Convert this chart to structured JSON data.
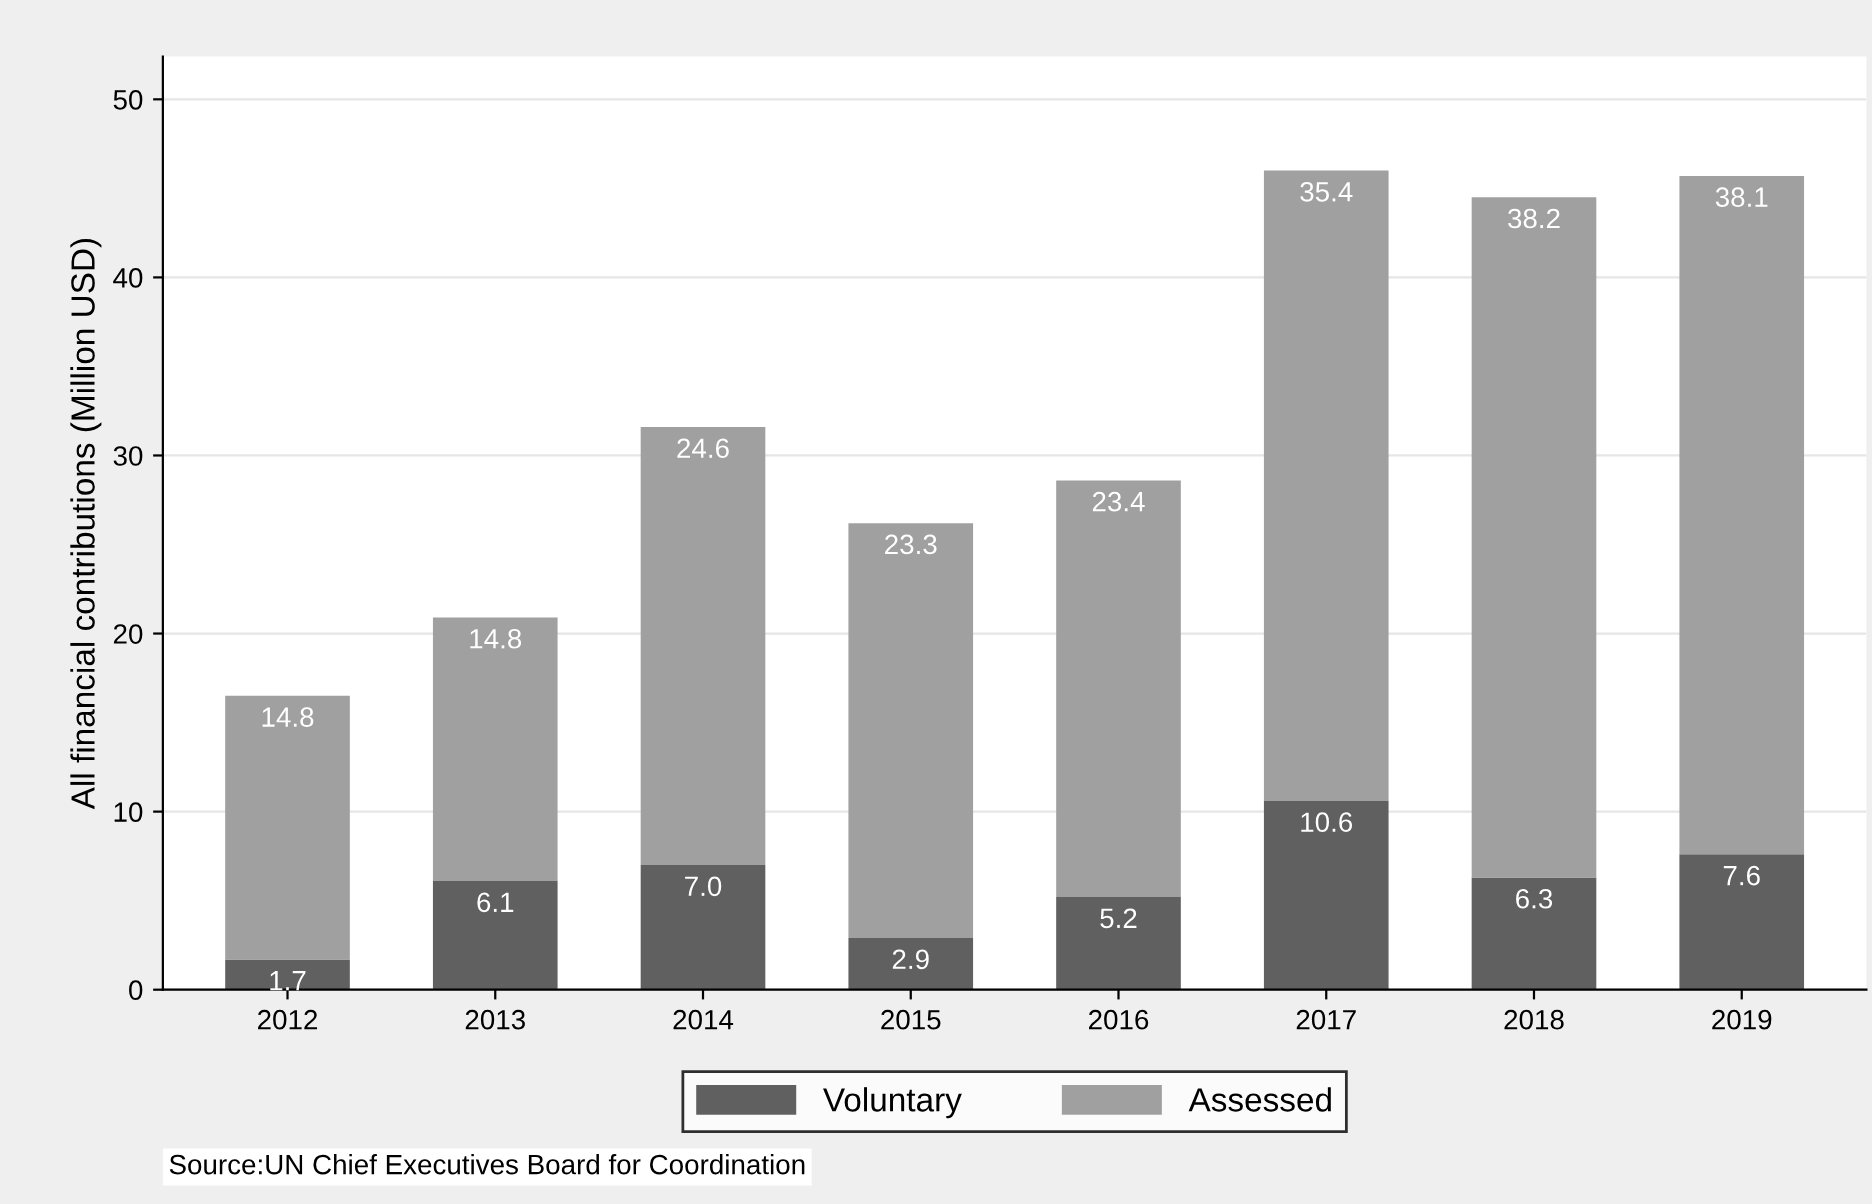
{
  "chart_data": {
    "type": "bar",
    "stacked": true,
    "ylabel": "All financial contributions (Million USD)",
    "categories": [
      "2012",
      "2013",
      "2014",
      "2015",
      "2016",
      "2017",
      "2018",
      "2019"
    ],
    "series": [
      {
        "name": "Voluntary",
        "color": "#606060",
        "values": [
          1.7,
          6.1,
          7.0,
          2.9,
          5.2,
          10.6,
          6.3,
          7.6
        ],
        "value_labels": [
          "1.7",
          "6.1",
          "7.0",
          "2.9",
          "5.2",
          "10.6",
          "6.3",
          "7.6"
        ]
      },
      {
        "name": "Assessed",
        "color": "#a0a0a0",
        "values": [
          14.8,
          14.8,
          24.6,
          23.3,
          23.4,
          35.4,
          38.2,
          38.1
        ],
        "value_labels": [
          "14.8",
          "14.8",
          "24.6",
          "23.3",
          "23.4",
          "35.4",
          "38.2",
          "38.1"
        ]
      }
    ],
    "ylim": [
      0,
      52.4
    ],
    "yticks": [
      0,
      10,
      20,
      30,
      40,
      50
    ],
    "grid": "y",
    "legend": "bottom",
    "annotations": [
      "Source:UN Chief Executives Board for Coordination"
    ]
  }
}
